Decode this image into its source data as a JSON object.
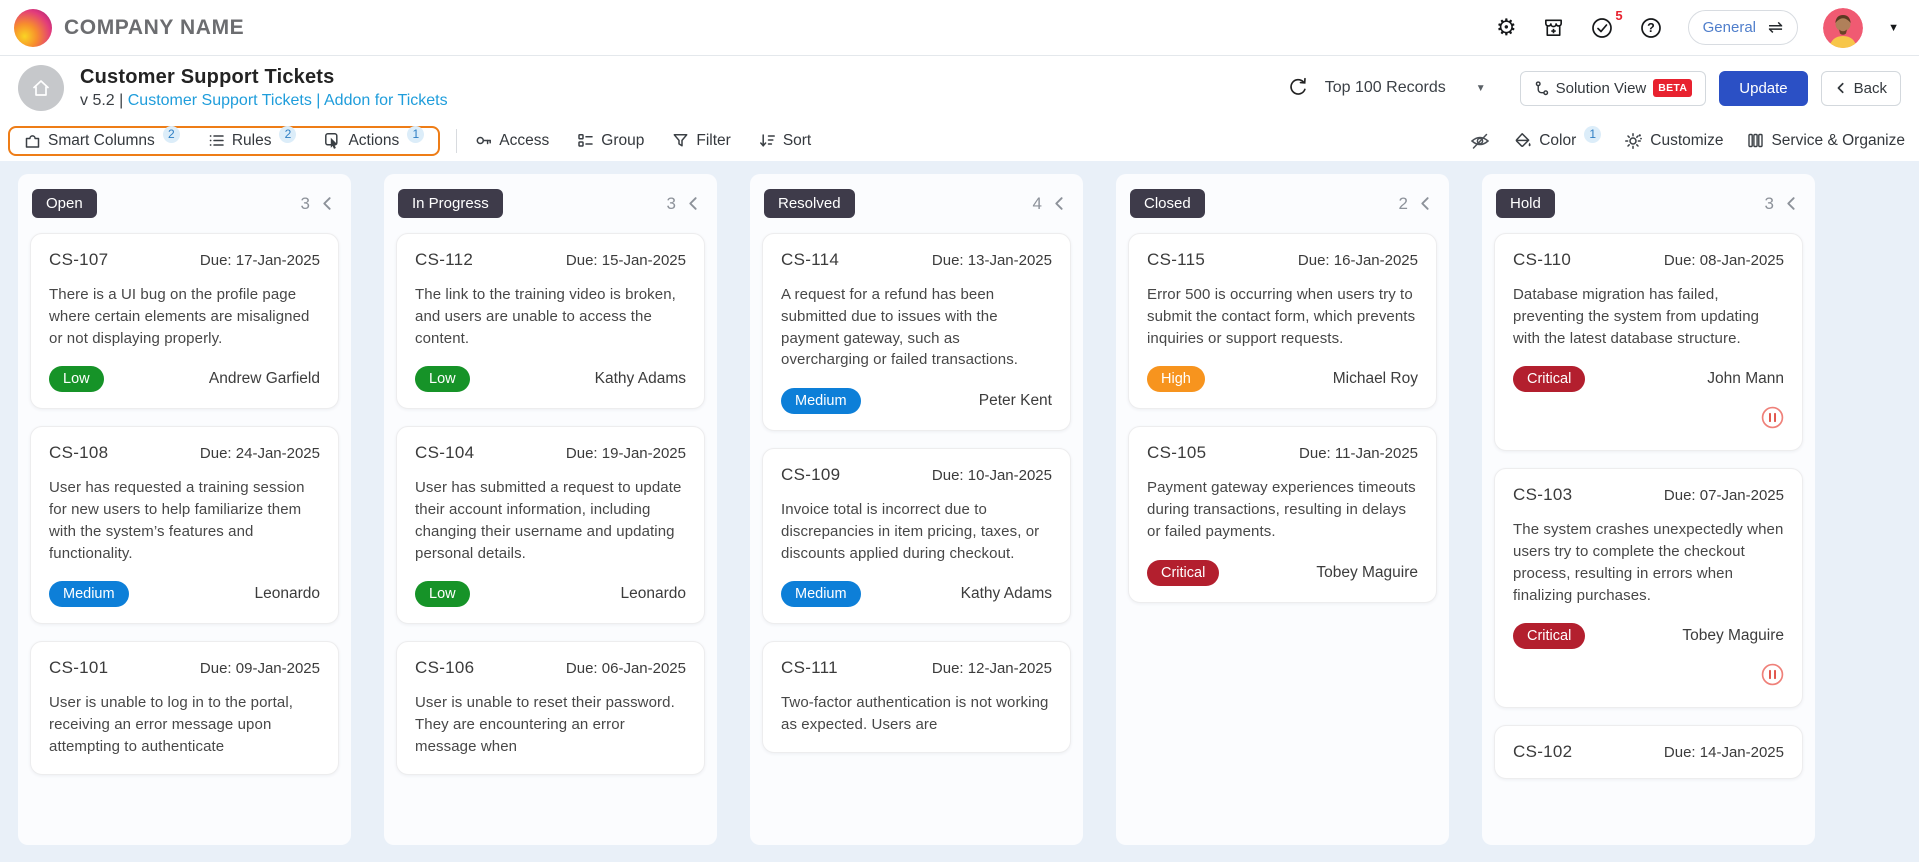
{
  "topbar": {
    "company_name": "COMPANY NAME",
    "notifications_badge": "5",
    "workspace_label": "General"
  },
  "header": {
    "title": "Customer Support Tickets",
    "version_prefix": "v 5.2 |",
    "breadcrumb_link_1": "Customer Support Tickets",
    "breadcrumb_separator": "|",
    "breadcrumb_link_2": "Addon for Tickets",
    "records_dropdown_value": "Top 100 Records",
    "solution_view_label": "Solution View",
    "beta_badge": "BETA",
    "update_button": "Update",
    "back_button": "Back"
  },
  "toolbar": {
    "smart_columns_label": "Smart Columns",
    "smart_columns_badge": "2",
    "rules_label": "Rules",
    "rules_badge": "2",
    "actions_label": "Actions",
    "actions_badge": "1",
    "access_label": "Access",
    "group_label": "Group",
    "filter_label": "Filter",
    "sort_label": "Sort",
    "color_label": "Color",
    "color_badge": "1",
    "customize_label": "Customize",
    "service_organize_label": "Service & Organize"
  },
  "colors": {
    "accent_orange": "#ee7d17",
    "link_blue": "#1f9ddb",
    "update_blue": "#2b50c5",
    "beta_red": "#e8222f",
    "column_pill": "#3e3b4a",
    "priority": {
      "Low": "#169328",
      "Medium": "#0d7fd8",
      "High": "#f7941e",
      "Critical": "#b31f2e"
    }
  },
  "board": {
    "columns": [
      {
        "name": "Open",
        "count": "3",
        "cards": [
          {
            "id": "CS-107",
            "due": "Due: 17-Jan-2025",
            "desc": "There is a UI bug on the profile page where certain elements are misaligned or not displaying properly.",
            "priority": "Low",
            "assignee": "Andrew Garfield",
            "on_hold": false
          },
          {
            "id": "CS-108",
            "due": "Due: 24-Jan-2025",
            "desc": "User has requested a training session for new users to help familiarize them with the system’s features and functionality.",
            "priority": "Medium",
            "assignee": "Leonardo",
            "on_hold": false
          },
          {
            "id": "CS-101",
            "due": "Due: 09-Jan-2025",
            "desc": "User is unable to log in to the portal, receiving an error message upon attempting to authenticate",
            "priority": "",
            "assignee": "",
            "on_hold": false
          }
        ]
      },
      {
        "name": "In Progress",
        "count": "3",
        "cards": [
          {
            "id": "CS-112",
            "due": "Due: 15-Jan-2025",
            "desc": "The link to the training video is broken, and users are unable to access the content.",
            "priority": "Low",
            "assignee": "Kathy Adams",
            "on_hold": false
          },
          {
            "id": "CS-104",
            "due": "Due: 19-Jan-2025",
            "desc": "User has submitted a request to update their account information, including changing their username and updating personal details.",
            "priority": "Low",
            "assignee": "Leonardo",
            "on_hold": false
          },
          {
            "id": "CS-106",
            "due": "Due: 06-Jan-2025",
            "desc": "User is unable to reset their password. They are encountering an error message when",
            "priority": "",
            "assignee": "",
            "on_hold": false
          }
        ]
      },
      {
        "name": "Resolved",
        "count": "4",
        "cards": [
          {
            "id": "CS-114",
            "due": "Due: 13-Jan-2025",
            "desc": "A request for a refund has been submitted due to issues with the payment gateway, such as overcharging or failed transactions.",
            "priority": "Medium",
            "assignee": "Peter Kent",
            "on_hold": false
          },
          {
            "id": "CS-109",
            "due": "Due: 10-Jan-2025",
            "desc": "Invoice total is incorrect due to discrepancies in item pricing, taxes, or discounts applied during checkout.",
            "priority": "Medium",
            "assignee": "Kathy Adams",
            "on_hold": false
          },
          {
            "id": "CS-111",
            "due": "Due: 12-Jan-2025",
            "desc": "Two-factor authentication is not working as expected. Users are",
            "priority": "",
            "assignee": "",
            "on_hold": false
          }
        ]
      },
      {
        "name": "Closed",
        "count": "2",
        "cards": [
          {
            "id": "CS-115",
            "due": "Due: 16-Jan-2025",
            "desc": "Error 500 is occurring when users try to submit the contact form, which prevents inquiries or support requests.",
            "priority": "High",
            "assignee": "Michael Roy",
            "on_hold": false
          },
          {
            "id": "CS-105",
            "due": "Due: 11-Jan-2025",
            "desc": "Payment gateway experiences timeouts during transactions, resulting in delays or failed payments.",
            "priority": "Critical",
            "assignee": "Tobey Maguire",
            "on_hold": false
          }
        ]
      },
      {
        "name": "Hold",
        "count": "3",
        "cards": [
          {
            "id": "CS-110",
            "due": "Due: 08-Jan-2025",
            "desc": "Database migration has failed, preventing the system from updating with the latest database structure.",
            "priority": "Critical",
            "assignee": "John Mann",
            "on_hold": true
          },
          {
            "id": "CS-103",
            "due": "Due: 07-Jan-2025",
            "desc": "The system crashes unexpectedly when users try to complete the checkout process, resulting in errors when finalizing purchases.",
            "priority": "Critical",
            "assignee": "Tobey Maguire",
            "on_hold": true
          },
          {
            "id": "CS-102",
            "due": "Due: 14-Jan-2025",
            "desc": "",
            "priority": "",
            "assignee": "",
            "on_hold": false
          }
        ]
      }
    ]
  }
}
